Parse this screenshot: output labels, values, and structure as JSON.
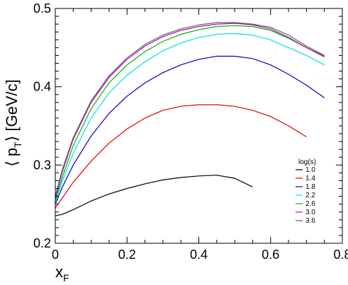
{
  "chart_data": {
    "type": "line",
    "xlabel_main": "x",
    "xlabel_sub": "F",
    "ylabel_left": "⟨ p",
    "ylabel_sub": "T",
    "ylabel_right": "⟩ [GeV/c]",
    "xlim": [
      0,
      0.8
    ],
    "ylim": [
      0.2,
      0.5
    ],
    "xticks": [
      "0",
      "0.2",
      "0.4",
      "0.6",
      "0.8"
    ],
    "yticks": [
      "0.2",
      "0.3",
      "0.4",
      "0.5"
    ],
    "xtick_values": [
      0,
      0.2,
      0.4,
      0.6,
      0.8
    ],
    "ytick_values": [
      0.2,
      0.3,
      0.4,
      0.5
    ],
    "grid": false,
    "legend": {
      "title": "log(s)",
      "placement": "bottom-right"
    },
    "series": [
      {
        "name": "1.0",
        "color": "#000000",
        "x": [
          0,
          0.02,
          0.05,
          0.1,
          0.15,
          0.2,
          0.25,
          0.3,
          0.35,
          0.4,
          0.45,
          0.5,
          0.55
        ],
        "y": [
          0.235,
          0.237,
          0.243,
          0.254,
          0.263,
          0.27,
          0.276,
          0.281,
          0.284,
          0.286,
          0.287,
          0.283,
          0.272
        ]
      },
      {
        "name": "1.4",
        "color": "#e00000",
        "x": [
          0,
          0.02,
          0.05,
          0.1,
          0.15,
          0.2,
          0.25,
          0.3,
          0.35,
          0.4,
          0.45,
          0.5,
          0.55,
          0.6,
          0.65,
          0.7
        ],
        "y": [
          0.245,
          0.258,
          0.278,
          0.305,
          0.328,
          0.346,
          0.36,
          0.37,
          0.375,
          0.377,
          0.377,
          0.375,
          0.37,
          0.362,
          0.35,
          0.336
        ]
      },
      {
        "name": "1.8",
        "color": "#0000c8",
        "x": [
          0,
          0.02,
          0.05,
          0.1,
          0.15,
          0.2,
          0.25,
          0.3,
          0.35,
          0.4,
          0.45,
          0.5,
          0.55,
          0.6,
          0.65,
          0.7,
          0.75
        ],
        "y": [
          0.25,
          0.272,
          0.3,
          0.337,
          0.366,
          0.388,
          0.405,
          0.418,
          0.428,
          0.435,
          0.439,
          0.439,
          0.436,
          0.428,
          0.416,
          0.402,
          0.386
        ]
      },
      {
        "name": "2.2",
        "color": "#00e0e0",
        "x": [
          0,
          0.02,
          0.05,
          0.1,
          0.15,
          0.2,
          0.25,
          0.3,
          0.35,
          0.4,
          0.45,
          0.5,
          0.55,
          0.6,
          0.65,
          0.7,
          0.75
        ],
        "y": [
          0.252,
          0.28,
          0.315,
          0.36,
          0.392,
          0.415,
          0.432,
          0.446,
          0.456,
          0.463,
          0.467,
          0.468,
          0.466,
          0.46,
          0.45,
          0.44,
          0.428
        ]
      },
      {
        "name": "2.6",
        "color": "#00b000",
        "x": [
          0,
          0.02,
          0.05,
          0.1,
          0.15,
          0.2,
          0.25,
          0.3,
          0.35,
          0.4,
          0.45,
          0.5,
          0.55,
          0.6,
          0.65,
          0.7,
          0.75
        ],
        "y": [
          0.255,
          0.285,
          0.325,
          0.372,
          0.405,
          0.428,
          0.445,
          0.458,
          0.467,
          0.473,
          0.477,
          0.478,
          0.477,
          0.472,
          0.462,
          0.45,
          0.438
        ]
      },
      {
        "name": "3.0",
        "color": "#c000c0",
        "x": [
          0,
          0.02,
          0.05,
          0.1,
          0.15,
          0.2,
          0.25,
          0.3,
          0.35,
          0.4,
          0.45,
          0.5,
          0.55,
          0.6,
          0.65,
          0.7,
          0.75
        ],
        "y": [
          0.258,
          0.292,
          0.333,
          0.38,
          0.412,
          0.435,
          0.452,
          0.464,
          0.472,
          0.477,
          0.48,
          0.481,
          0.479,
          0.474,
          0.463,
          0.45,
          0.439
        ]
      },
      {
        "name": "3.6",
        "color": "#606060",
        "x": [
          0,
          0.02,
          0.05,
          0.1,
          0.15,
          0.2,
          0.25,
          0.3,
          0.35,
          0.4,
          0.45,
          0.5,
          0.55,
          0.6,
          0.65,
          0.7,
          0.75
        ],
        "y": [
          0.26,
          0.295,
          0.335,
          0.382,
          0.414,
          0.437,
          0.454,
          0.466,
          0.474,
          0.479,
          0.482,
          0.482,
          0.48,
          0.476,
          0.466,
          0.452,
          0.44
        ]
      }
    ]
  }
}
